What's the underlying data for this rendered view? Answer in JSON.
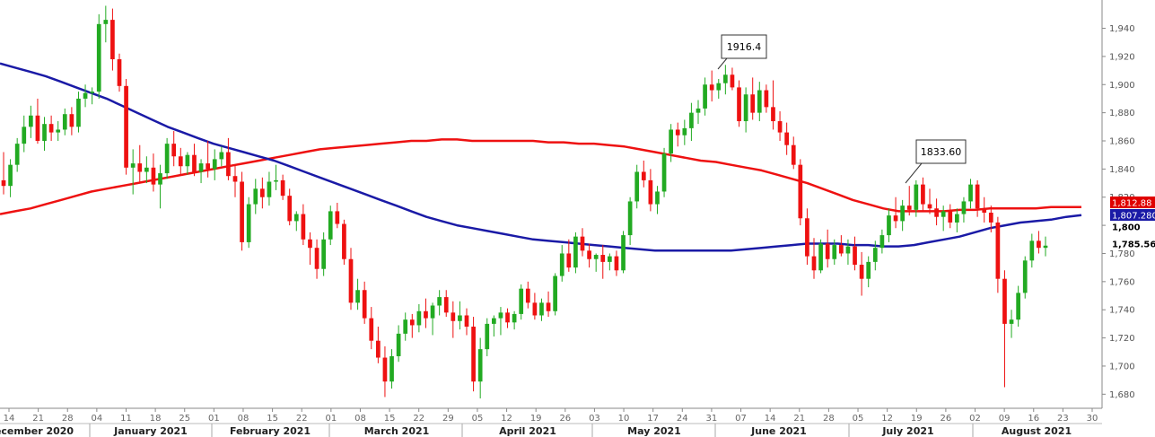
{
  "chart_data": {
    "type": "candlestick",
    "ylim": [
      1670,
      1955
    ],
    "y_ticks": [
      1680,
      1700,
      1720,
      1740,
      1760,
      1780,
      1800,
      1820,
      1840,
      1860,
      1880,
      1900,
      1920,
      1940
    ],
    "y_tick_labels": [
      "1,680",
      "1,700",
      "1,720",
      "1,740",
      "1,760",
      "1,780",
      "1,800",
      "1,820",
      "1,840",
      "1,860",
      "1,880",
      "1,900",
      "1,920",
      "1,940"
    ],
    "x_ticks": [
      "14",
      "21",
      "28",
      "04",
      "11",
      "18",
      "25",
      "01",
      "08",
      "15",
      "22",
      "01",
      "08",
      "15",
      "22",
      "29",
      "05",
      "12",
      "19",
      "26",
      "03",
      "10",
      "17",
      "24",
      "31",
      "07",
      "14",
      "21",
      "28",
      "05",
      "12",
      "19",
      "26",
      "02",
      "09",
      "16",
      "23",
      "30"
    ],
    "month_labels": [
      "ecember 2020",
      "January 2021",
      "February 2021",
      "March 2021",
      "April 2021",
      "May 2021",
      "June 2021",
      "July 2021",
      "August 2021"
    ],
    "callouts": [
      {
        "text": "1916.4",
        "price": 1916.4
      },
      {
        "text": "1833.60",
        "price": 1833.6
      }
    ],
    "price_badges": [
      {
        "text": "1,812.88",
        "price": 1812.88,
        "color": "#e00000"
      },
      {
        "text": "1,807.280",
        "price": 1807.28,
        "color": "#1a1aa6"
      },
      {
        "text": "1,800",
        "price": 1800,
        "color": "#ffffff"
      },
      {
        "text": "1,785.56",
        "price": 1785.56,
        "color": "#ffffff"
      }
    ],
    "colors": {
      "up": "#22aa22",
      "down": "#ee1111",
      "ma_red": "#ee1111",
      "ma_blue": "#1a1aa6",
      "axis": "#555555"
    },
    "candles": [
      [
        1832,
        1852,
        1822,
        1828
      ],
      [
        1828,
        1847,
        1820,
        1843
      ],
      [
        1843,
        1862,
        1838,
        1858
      ],
      [
        1858,
        1878,
        1852,
        1870
      ],
      [
        1870,
        1885,
        1862,
        1878
      ],
      [
        1878,
        1890,
        1858,
        1860
      ],
      [
        1860,
        1877,
        1853,
        1872
      ],
      [
        1872,
        1878,
        1860,
        1866
      ],
      [
        1866,
        1874,
        1860,
        1868
      ],
      [
        1868,
        1883,
        1864,
        1879
      ],
      [
        1879,
        1884,
        1864,
        1870
      ],
      [
        1870,
        1895,
        1866,
        1890
      ],
      [
        1890,
        1900,
        1884,
        1894
      ],
      [
        1894,
        1898,
        1886,
        1895
      ],
      [
        1895,
        1950,
        1890,
        1943
      ],
      [
        1943,
        1956,
        1930,
        1946
      ],
      [
        1946,
        1954,
        1910,
        1918
      ],
      [
        1918,
        1922,
        1895,
        1899
      ],
      [
        1899,
        1904,
        1836,
        1841
      ],
      [
        1841,
        1854,
        1822,
        1844
      ],
      [
        1844,
        1857,
        1831,
        1838
      ],
      [
        1838,
        1849,
        1830,
        1841
      ],
      [
        1841,
        1851,
        1824,
        1829
      ],
      [
        1829,
        1843,
        1812,
        1837
      ],
      [
        1837,
        1862,
        1833,
        1858
      ],
      [
        1858,
        1867,
        1842,
        1849
      ],
      [
        1849,
        1855,
        1836,
        1842
      ],
      [
        1842,
        1852,
        1836,
        1850
      ],
      [
        1850,
        1858,
        1835,
        1838
      ],
      [
        1838,
        1847,
        1830,
        1844
      ],
      [
        1844,
        1860,
        1834,
        1840
      ],
      [
        1840,
        1854,
        1832,
        1847
      ],
      [
        1847,
        1856,
        1842,
        1852
      ],
      [
        1852,
        1862,
        1832,
        1835
      ],
      [
        1835,
        1843,
        1820,
        1831
      ],
      [
        1831,
        1838,
        1782,
        1788
      ],
      [
        1788,
        1820,
        1784,
        1815
      ],
      [
        1815,
        1833,
        1808,
        1826
      ],
      [
        1826,
        1834,
        1812,
        1820
      ],
      [
        1820,
        1838,
        1814,
        1831
      ],
      [
        1831,
        1843,
        1825,
        1832
      ],
      [
        1832,
        1836,
        1818,
        1821
      ],
      [
        1821,
        1826,
        1800,
        1803
      ],
      [
        1803,
        1810,
        1796,
        1808
      ],
      [
        1808,
        1815,
        1786,
        1790
      ],
      [
        1790,
        1795,
        1772,
        1784
      ],
      [
        1784,
        1790,
        1762,
        1769
      ],
      [
        1769,
        1795,
        1764,
        1790
      ],
      [
        1790,
        1814,
        1786,
        1810
      ],
      [
        1810,
        1816,
        1798,
        1801
      ],
      [
        1801,
        1804,
        1772,
        1776
      ],
      [
        1776,
        1784,
        1740,
        1745
      ],
      [
        1745,
        1762,
        1740,
        1754
      ],
      [
        1754,
        1760,
        1730,
        1734
      ],
      [
        1734,
        1742,
        1712,
        1718
      ],
      [
        1718,
        1728,
        1702,
        1706
      ],
      [
        1706,
        1714,
        1678,
        1689
      ],
      [
        1689,
        1712,
        1684,
        1707
      ],
      [
        1707,
        1729,
        1703,
        1723
      ],
      [
        1723,
        1738,
        1718,
        1733
      ],
      [
        1733,
        1737,
        1720,
        1729
      ],
      [
        1729,
        1744,
        1724,
        1739
      ],
      [
        1739,
        1748,
        1727,
        1734
      ],
      [
        1734,
        1745,
        1722,
        1743
      ],
      [
        1743,
        1754,
        1736,
        1749
      ],
      [
        1749,
        1754,
        1735,
        1738
      ],
      [
        1738,
        1746,
        1720,
        1732
      ],
      [
        1732,
        1746,
        1726,
        1736
      ],
      [
        1736,
        1741,
        1722,
        1728
      ],
      [
        1728,
        1735,
        1682,
        1689
      ],
      [
        1689,
        1720,
        1677,
        1712
      ],
      [
        1712,
        1734,
        1707,
        1730
      ],
      [
        1730,
        1736,
        1721,
        1734
      ],
      [
        1734,
        1742,
        1722,
        1738
      ],
      [
        1738,
        1741,
        1727,
        1731
      ],
      [
        1731,
        1739,
        1726,
        1737
      ],
      [
        1737,
        1758,
        1733,
        1755
      ],
      [
        1755,
        1760,
        1741,
        1745
      ],
      [
        1745,
        1752,
        1733,
        1736
      ],
      [
        1736,
        1748,
        1732,
        1745
      ],
      [
        1745,
        1753,
        1735,
        1739
      ],
      [
        1739,
        1766,
        1736,
        1764
      ],
      [
        1764,
        1786,
        1760,
        1780
      ],
      [
        1780,
        1790,
        1767,
        1770
      ],
      [
        1770,
        1795,
        1766,
        1792
      ],
      [
        1792,
        1798,
        1778,
        1782
      ],
      [
        1782,
        1787,
        1770,
        1776
      ],
      [
        1776,
        1780,
        1767,
        1779
      ],
      [
        1779,
        1786,
        1762,
        1774
      ],
      [
        1774,
        1780,
        1768,
        1778
      ],
      [
        1778,
        1782,
        1764,
        1768
      ],
      [
        1768,
        1796,
        1766,
        1793
      ],
      [
        1793,
        1820,
        1786,
        1817
      ],
      [
        1817,
        1843,
        1812,
        1838
      ],
      [
        1838,
        1846,
        1827,
        1832
      ],
      [
        1832,
        1840,
        1810,
        1815
      ],
      [
        1815,
        1828,
        1808,
        1824
      ],
      [
        1824,
        1855,
        1820,
        1851
      ],
      [
        1851,
        1872,
        1845,
        1868
      ],
      [
        1868,
        1873,
        1856,
        1864
      ],
      [
        1864,
        1875,
        1857,
        1869
      ],
      [
        1869,
        1887,
        1860,
        1880
      ],
      [
        1880,
        1889,
        1872,
        1883
      ],
      [
        1883,
        1905,
        1878,
        1900
      ],
      [
        1900,
        1910,
        1888,
        1896
      ],
      [
        1896,
        1904,
        1890,
        1901
      ],
      [
        1901,
        1914,
        1893,
        1907
      ],
      [
        1907,
        1912,
        1896,
        1898
      ],
      [
        1898,
        1903,
        1870,
        1874
      ],
      [
        1874,
        1898,
        1866,
        1893
      ],
      [
        1893,
        1905,
        1875,
        1880
      ],
      [
        1880,
        1902,
        1874,
        1896
      ],
      [
        1896,
        1900,
        1880,
        1884
      ],
      [
        1884,
        1903,
        1868,
        1874
      ],
      [
        1874,
        1881,
        1860,
        1866
      ],
      [
        1866,
        1873,
        1850,
        1857
      ],
      [
        1857,
        1863,
        1840,
        1843
      ],
      [
        1843,
        1847,
        1800,
        1805
      ],
      [
        1805,
        1812,
        1772,
        1778
      ],
      [
        1778,
        1791,
        1762,
        1768
      ],
      [
        1768,
        1790,
        1766,
        1787
      ],
      [
        1787,
        1797,
        1770,
        1776
      ],
      [
        1776,
        1790,
        1772,
        1786
      ],
      [
        1786,
        1793,
        1778,
        1780
      ],
      [
        1780,
        1790,
        1772,
        1785
      ],
      [
        1785,
        1792,
        1768,
        1772
      ],
      [
        1772,
        1781,
        1750,
        1762
      ],
      [
        1762,
        1778,
        1756,
        1774
      ],
      [
        1774,
        1789,
        1768,
        1784
      ],
      [
        1784,
        1797,
        1780,
        1793
      ],
      [
        1793,
        1812,
        1788,
        1807
      ],
      [
        1807,
        1820,
        1798,
        1803
      ],
      [
        1803,
        1818,
        1796,
        1814
      ],
      [
        1814,
        1828,
        1807,
        1811
      ],
      [
        1811,
        1832,
        1806,
        1829
      ],
      [
        1829,
        1834,
        1810,
        1815
      ],
      [
        1815,
        1826,
        1808,
        1812
      ],
      [
        1812,
        1819,
        1800,
        1806
      ],
      [
        1806,
        1814,
        1796,
        1810
      ],
      [
        1810,
        1815,
        1798,
        1802
      ],
      [
        1802,
        1812,
        1795,
        1808
      ],
      [
        1808,
        1820,
        1802,
        1817
      ],
      [
        1817,
        1833,
        1812,
        1829
      ],
      [
        1829,
        1832,
        1806,
        1812
      ],
      [
        1812,
        1820,
        1802,
        1809
      ],
      [
        1809,
        1814,
        1795,
        1802
      ],
      [
        1802,
        1806,
        1752,
        1762
      ],
      [
        1762,
        1768,
        1685,
        1730
      ],
      [
        1730,
        1740,
        1720,
        1733
      ],
      [
        1733,
        1757,
        1728,
        1752
      ],
      [
        1752,
        1778,
        1748,
        1775
      ],
      [
        1775,
        1794,
        1770,
        1789
      ],
      [
        1789,
        1796,
        1780,
        1784
      ],
      [
        1784,
        1792,
        1778,
        1785.56
      ]
    ],
    "ma_red": [
      1808,
      1810,
      1812,
      1815,
      1818,
      1821,
      1824,
      1826,
      1828,
      1830,
      1832,
      1834,
      1836,
      1838,
      1840,
      1842,
      1844,
      1846,
      1848,
      1850,
      1852,
      1854,
      1855,
      1856,
      1857,
      1858,
      1859,
      1860,
      1860,
      1861,
      1861,
      1860,
      1860,
      1860,
      1860,
      1860,
      1859,
      1859,
      1858,
      1858,
      1857,
      1856,
      1854,
      1852,
      1850,
      1848,
      1846,
      1845,
      1843,
      1841,
      1839,
      1836,
      1833,
      1830,
      1826,
      1822,
      1818,
      1815,
      1812,
      1810,
      1810,
      1810,
      1810,
      1811,
      1811,
      1812,
      1812,
      1812,
      1812,
      1813,
      1813,
      1813
    ],
    "ma_blue": [
      1915,
      1912,
      1909,
      1906,
      1902,
      1898,
      1894,
      1890,
      1885,
      1880,
      1875,
      1870,
      1866,
      1862,
      1858,
      1855,
      1852,
      1849,
      1846,
      1842,
      1838,
      1834,
      1830,
      1826,
      1822,
      1818,
      1814,
      1810,
      1806,
      1803,
      1800,
      1798,
      1796,
      1794,
      1792,
      1790,
      1789,
      1788,
      1787,
      1786,
      1785,
      1784,
      1783,
      1782,
      1782,
      1782,
      1782,
      1782,
      1782,
      1783,
      1784,
      1785,
      1786,
      1787,
      1787,
      1787,
      1786,
      1786,
      1785,
      1785,
      1786,
      1788,
      1790,
      1792,
      1795,
      1798,
      1800,
      1802,
      1803,
      1804,
      1806,
      1807.28
    ]
  }
}
